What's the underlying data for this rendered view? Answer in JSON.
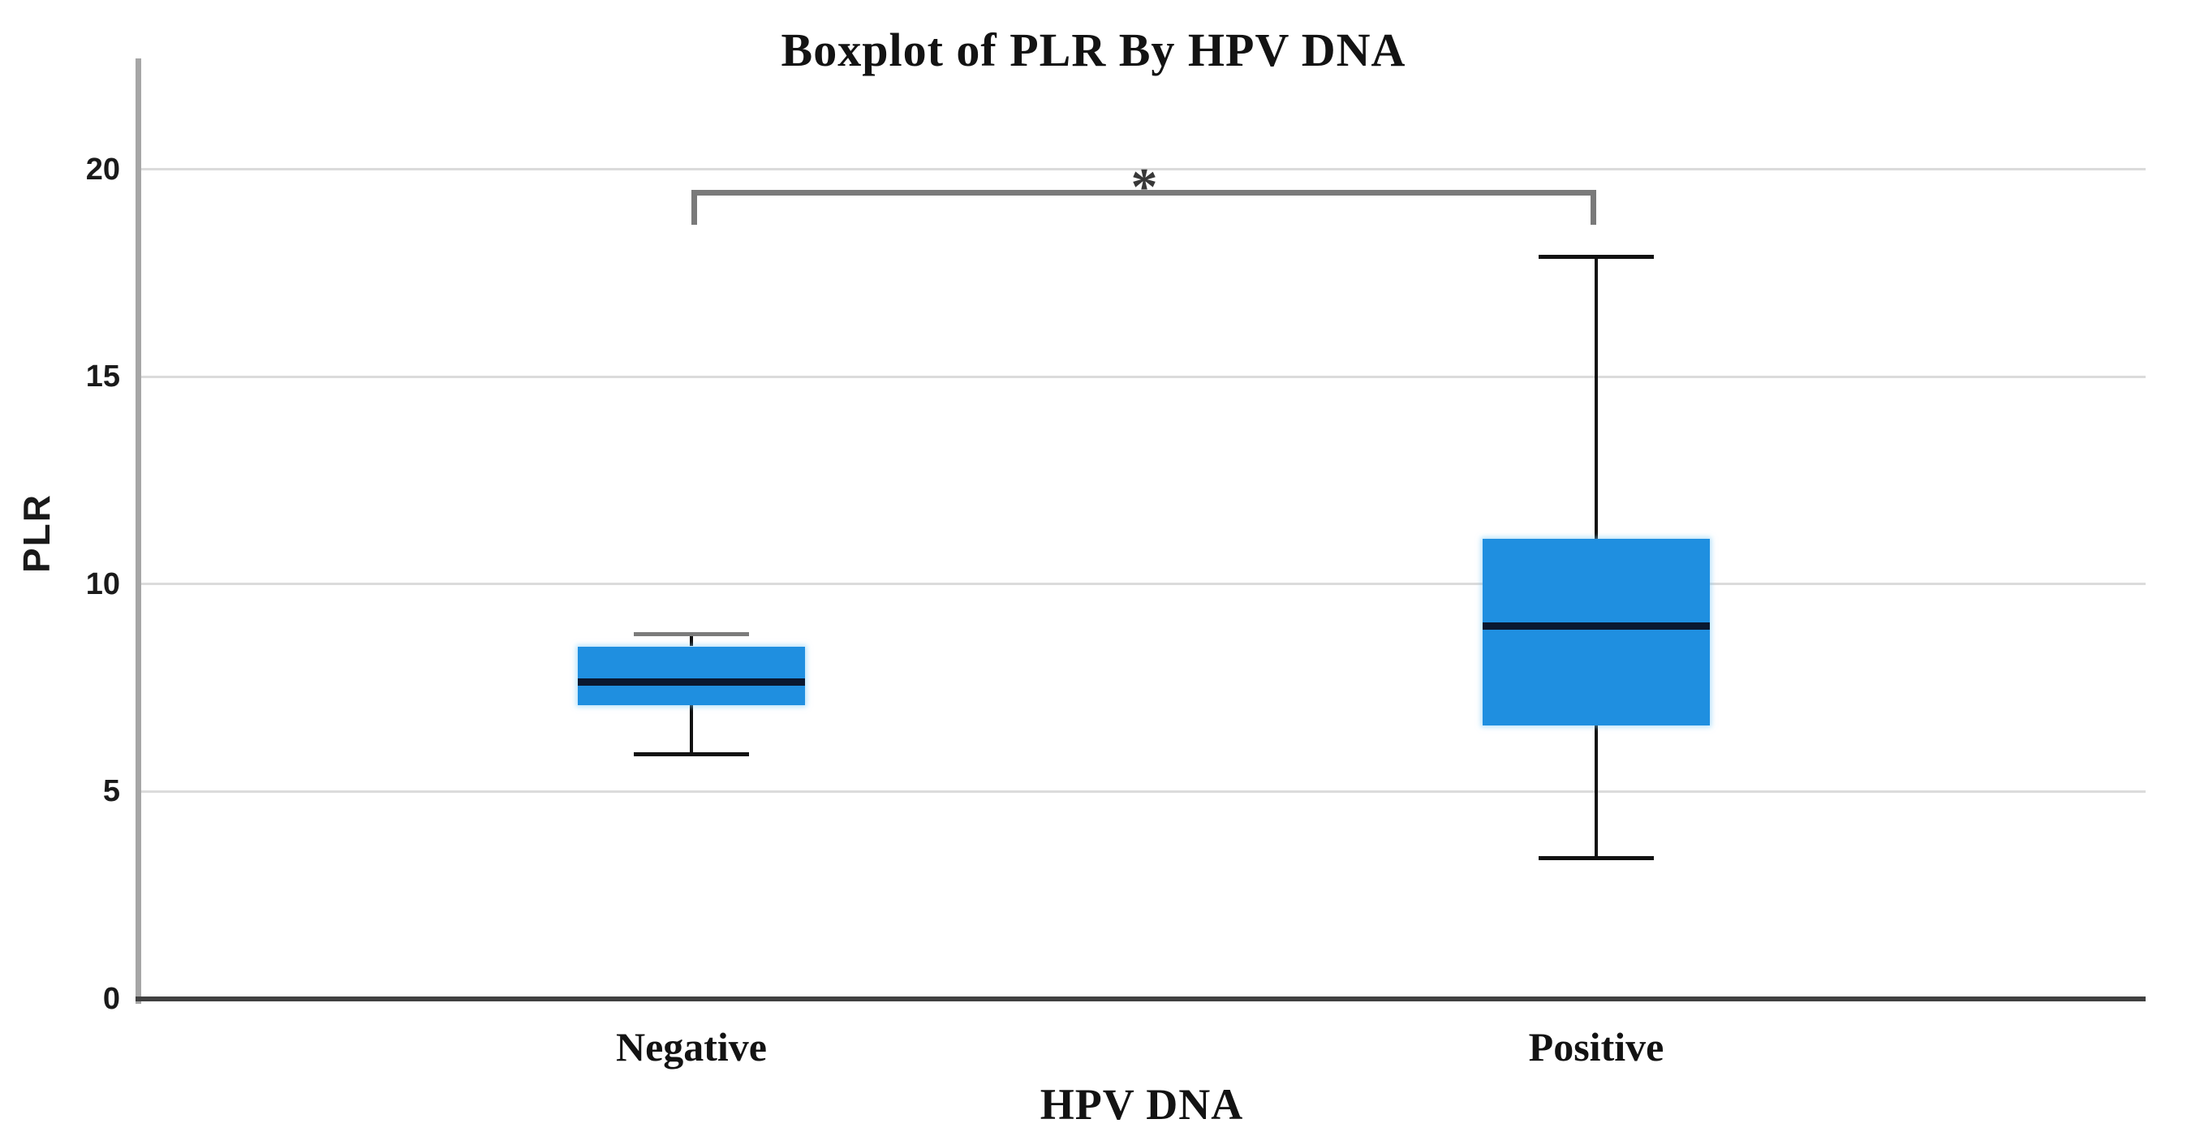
{
  "chart_data": {
    "type": "boxplot",
    "title": "Boxplot of PLR By HPV DNA",
    "xlabel": "HPV DNA",
    "ylabel": "PLR",
    "ylim": [
      0,
      22.6
    ],
    "yticks": [
      0,
      5,
      10,
      15,
      20
    ],
    "grid": "horizontal-light-gray",
    "legend": "none",
    "categories": [
      "Negative",
      "Positive"
    ],
    "series": [
      {
        "name": "Negative",
        "whisker_low": 5.9,
        "q1": 7.1,
        "median": 7.65,
        "q3": 8.5,
        "whisker_high": 8.8
      },
      {
        "name": "Positive",
        "whisker_low": 3.4,
        "q1": 6.6,
        "median": 9.0,
        "q3": 11.1,
        "whisker_high": 17.9
      }
    ],
    "annotation": {
      "type": "significance_bracket",
      "between": [
        "Negative",
        "Positive"
      ],
      "label": "*",
      "bar_y": 19.45,
      "tick_drop": 0.85,
      "label_y": 20.05
    },
    "colors": {
      "box_fill": "#1F8FE0",
      "median": "#0A1830",
      "whisker": "#111111",
      "negative_top_cap": "#7B7B7B",
      "bracket": "#7A7A7A",
      "asterisk": "#383838",
      "gridline": "#DBDBDB",
      "y_axis": "#A6A6A6",
      "x_axis": "#404040",
      "text": "#131313",
      "background": "#FFFFFF"
    }
  }
}
